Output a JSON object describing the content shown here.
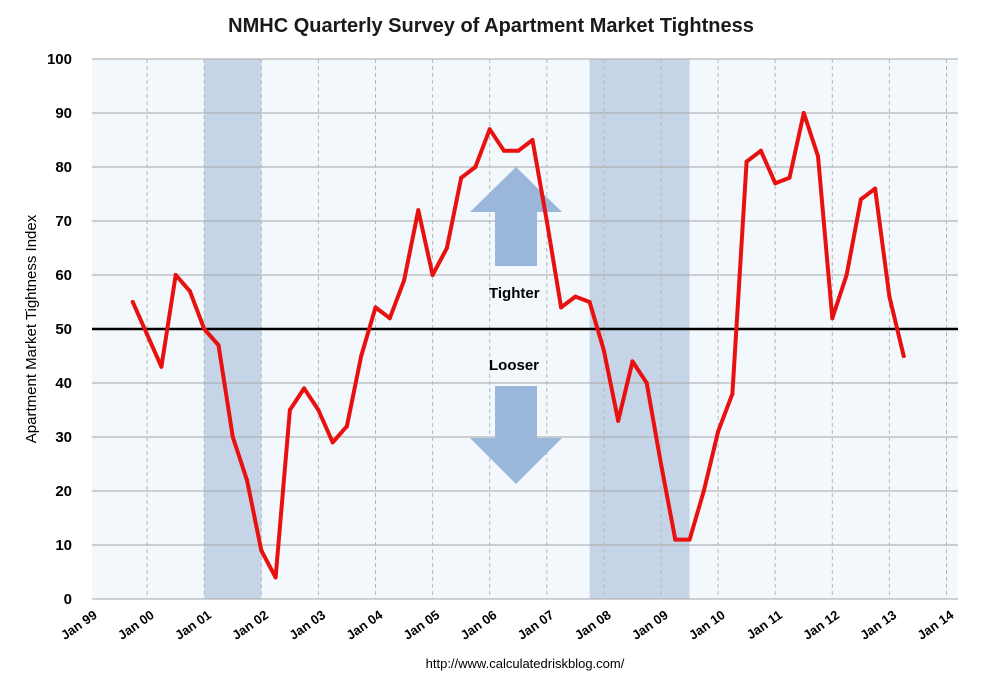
{
  "chart_data": {
    "type": "line",
    "title": "NMHC Quarterly Survey of Apartment Market Tightness",
    "ylabel": "Apartment Market Tightness Index",
    "xlabel": "",
    "ylim": [
      0,
      100
    ],
    "yticks": [
      0,
      10,
      20,
      30,
      40,
      50,
      60,
      70,
      80,
      90,
      100
    ],
    "xlim": [
      1999.0,
      2014.0
    ],
    "xticks": [
      {
        "value": 1999,
        "label": "Jan 99"
      },
      {
        "value": 2000,
        "label": "Jan 00"
      },
      {
        "value": 2001,
        "label": "Jan 01"
      },
      {
        "value": 2002,
        "label": "Jan 02"
      },
      {
        "value": 2003,
        "label": "Jan 03"
      },
      {
        "value": 2004,
        "label": "Jan 04"
      },
      {
        "value": 2005,
        "label": "Jan 05"
      },
      {
        "value": 2006,
        "label": "Jan 06"
      },
      {
        "value": 2007,
        "label": "Jan 07"
      },
      {
        "value": 2008,
        "label": "Jan 08"
      },
      {
        "value": 2009,
        "label": "Jan 09"
      },
      {
        "value": 2010,
        "label": "Jan 10"
      },
      {
        "value": 2011,
        "label": "Jan 11"
      },
      {
        "value": 2012,
        "label": "Jan 12"
      },
      {
        "value": 2013,
        "label": "Jan 13"
      },
      {
        "value": 2014,
        "label": "Jan 14"
      }
    ],
    "reference_line": 50,
    "recessions": [
      {
        "start": 2001.0,
        "end": 2002.0
      },
      {
        "start": 2007.75,
        "end": 2009.5
      }
    ],
    "series": [
      {
        "name": "Apartment Market Tightness Index",
        "color": "#e8110f",
        "x": [
          1999.75,
          2000.0,
          2000.25,
          2000.5,
          2000.75,
          2001.0,
          2001.25,
          2001.5,
          2001.75,
          2002.0,
          2002.25,
          2002.5,
          2002.75,
          2003.0,
          2003.25,
          2003.5,
          2003.75,
          2004.0,
          2004.25,
          2004.5,
          2004.75,
          2005.0,
          2005.25,
          2005.5,
          2005.75,
          2006.0,
          2006.25,
          2006.5,
          2006.75,
          2007.0,
          2007.25,
          2007.5,
          2007.75,
          2008.0,
          2008.25,
          2008.5,
          2008.75,
          2009.0,
          2009.25,
          2009.5,
          2009.75,
          2010.0,
          2010.25,
          2010.5,
          2010.75,
          2011.0,
          2011.25,
          2011.5,
          2011.75,
          2012.0,
          2012.25,
          2012.5,
          2012.75,
          2013.0,
          2013.25
        ],
        "values": [
          55,
          49,
          43,
          60,
          57,
          50,
          47,
          30,
          22,
          9,
          4,
          35,
          39,
          35,
          29,
          32,
          45,
          54,
          52,
          59,
          72,
          60,
          65,
          78,
          80,
          87,
          83,
          83,
          85,
          70,
          54,
          56,
          55,
          46,
          33,
          44,
          40,
          25,
          11,
          11,
          20,
          31,
          38,
          81,
          83,
          77,
          78,
          90,
          82,
          52,
          60,
          74,
          76,
          56,
          45
        ]
      }
    ],
    "annotations": {
      "tighter": "Tighter",
      "looser": "Looser"
    },
    "source": "http://www.calculatedriskblog.com/"
  },
  "colors": {
    "background": "#ffffff",
    "plot_background": "#f2f8fc",
    "grid": "#a6a6a6",
    "recession": "#c5d5e7",
    "arrow": "#9ab6da",
    "reference": "#000000"
  }
}
